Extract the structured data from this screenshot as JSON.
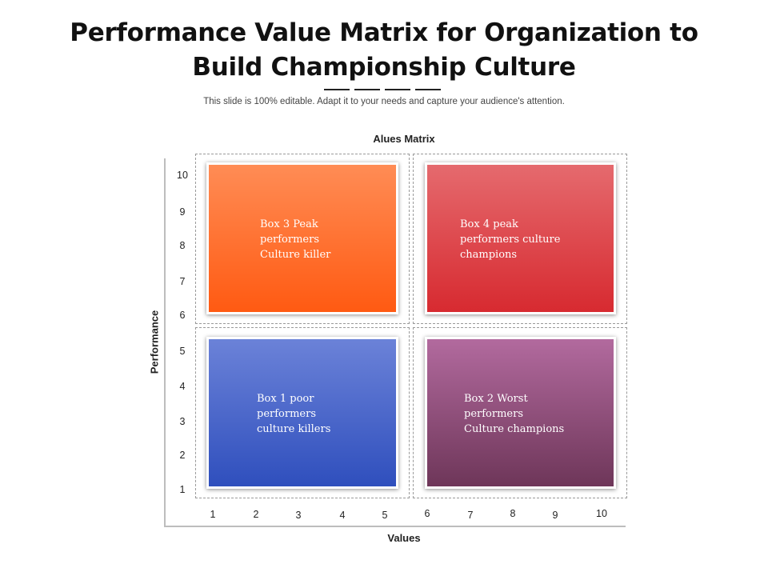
{
  "header": {
    "title_line1": "Performance Value Matrix for Organization to",
    "title_line2": "Build Championship Culture",
    "subtitle": "This slide is 100% editable. Adapt it to your needs and capture your audience's attention."
  },
  "matrix": {
    "title": "Alues Matrix",
    "y_axis_label": "Performance",
    "x_axis_label": "Values",
    "y_ticks": [
      "10",
      "9",
      "8",
      "7",
      "6",
      "5",
      "4",
      "3",
      "2",
      "1"
    ],
    "x_ticks": [
      "1",
      "2",
      "3",
      "4",
      "5",
      "6",
      "7",
      "8",
      "9",
      "10"
    ],
    "boxes": {
      "box3": {
        "lines": [
          "Box 3 Peak",
          "performers",
          "Culture killer"
        ],
        "color_top": "#ff8c55",
        "color_bottom": "#ff5a12"
      },
      "box4": {
        "lines": [
          "Box 4 peak",
          "performers culture",
          "champions"
        ],
        "color_top": "#e56a6e",
        "color_bottom": "#d72a30"
      },
      "box1": {
        "lines": [
          "Box 1 poor",
          "performers",
          "culture killers"
        ],
        "color_top": "#6b82d8",
        "color_bottom": "#2f4fbd"
      },
      "box2": {
        "lines": [
          "Box 2 Worst",
          "performers",
          "Culture champions"
        ],
        "color_top": "#b26a9e",
        "color_bottom": "#6e3659"
      }
    }
  }
}
